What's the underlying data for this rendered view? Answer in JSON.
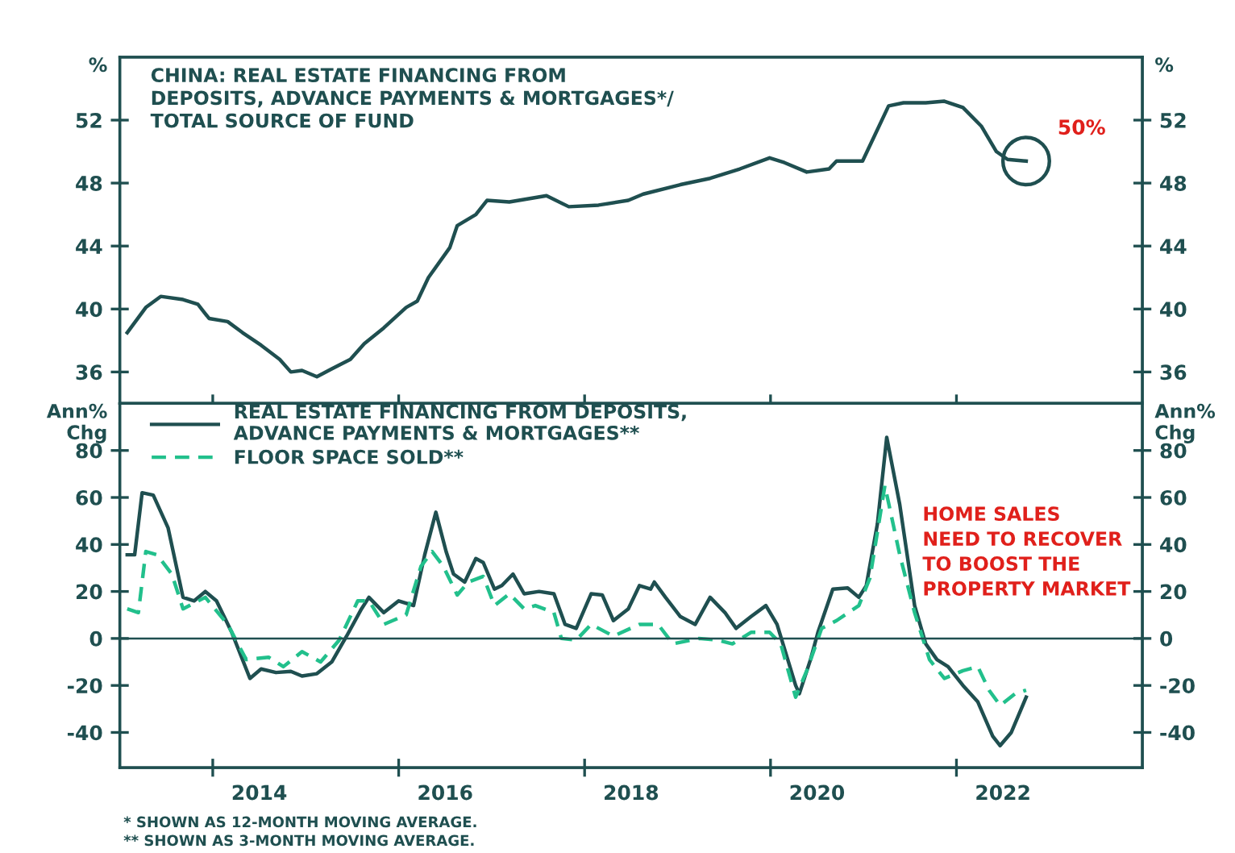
{
  "chart_data": [
    {
      "type": "line",
      "title": "CHINA: REAL ESTATE FINANCING FROM\nDEPOSITS, ADVANCE PAYMENTS & MORTGAGES*/\nTOTAL SOURCE OF FUND",
      "ylabel": "%",
      "y2label": "%",
      "xlim": [
        2013,
        2024
      ],
      "ylim": [
        34,
        56
      ],
      "yticks": [
        36,
        40,
        44,
        48,
        52
      ],
      "y2lim": [
        34,
        56
      ],
      "y2ticks": [
        36,
        40,
        44,
        48,
        52
      ],
      "xticks": [
        {
          "value": 2014,
          "label": null
        },
        {
          "value": 2016,
          "label": null
        },
        {
          "value": 2018,
          "label": null
        },
        {
          "value": 2020,
          "label": null
        },
        {
          "value": 2022,
          "label": null
        }
      ],
      "tick_labels": "y",
      "grid": false,
      "legend": false,
      "line_style": "solid",
      "marker": "none",
      "annotations": [
        {
          "text": "50%",
          "x": 2022.75,
          "y": 49.4
        }
      ],
      "series": [
        {
          "color": "#1f4f50",
          "x": [
            2013.08,
            2013.28,
            2013.44,
            2013.68,
            2013.84,
            2013.96,
            2014.16,
            2014.32,
            2014.52,
            2014.72,
            2014.84,
            2014.96,
            2015.12,
            2015.28,
            2015.48,
            2015.63,
            2015.84,
            2016.08,
            2016.2,
            2016.32,
            2016.55,
            2016.63,
            2016.83,
            2016.95,
            2017.19,
            2017.59,
            2017.83,
            2018.15,
            2018.47,
            2018.63,
            2019.03,
            2019.35,
            2019.67,
            2019.99,
            2020.15,
            2020.39,
            2020.63,
            2020.71,
            2020.99,
            2021.11,
            2021.27,
            2021.43,
            2021.67,
            2021.87,
            2022.07,
            2022.27,
            2022.43,
            2022.55,
            2022.75
          ],
          "values": [
            38.5,
            40.1,
            40.8,
            40.6,
            40.3,
            39.4,
            39.2,
            38.5,
            37.7,
            36.8,
            36.0,
            36.1,
            35.7,
            36.2,
            36.8,
            37.8,
            38.8,
            40.1,
            40.5,
            42.0,
            43.9,
            45.3,
            46.0,
            46.9,
            46.8,
            47.2,
            46.5,
            46.6,
            46.9,
            47.3,
            47.9,
            48.3,
            48.9,
            49.6,
            49.3,
            48.7,
            48.9,
            49.4,
            49.4,
            50.9,
            52.9,
            53.1,
            53.1,
            53.2,
            52.8,
            51.6,
            50.0,
            49.5,
            49.4
          ]
        }
      ]
    },
    {
      "type": "line",
      "ylabel": "Ann%\nChg",
      "y2label": "Ann%\nChg",
      "xlim": [
        2013,
        2024
      ],
      "ylim": [
        -55,
        100
      ],
      "yticks": [
        -40,
        -20,
        0,
        20,
        40,
        60,
        80
      ],
      "y2lim": [
        -55,
        100
      ],
      "y2ticks": [
        -40,
        -20,
        0,
        20,
        40,
        60,
        80
      ],
      "xticks": [
        {
          "value": 2014,
          "label": null
        },
        {
          "value": 2014.5,
          "label": "2014"
        },
        {
          "value": 2016,
          "label": null
        },
        {
          "value": 2016.5,
          "label": "2016"
        },
        {
          "value": 2018,
          "label": null
        },
        {
          "value": 2018.5,
          "label": "2018"
        },
        {
          "value": 2020,
          "label": null
        },
        {
          "value": 2020.5,
          "label": "2020"
        },
        {
          "value": 2022,
          "label": null
        },
        {
          "value": 2022.5,
          "label": "2022"
        }
      ],
      "grid": false,
      "legend": "top left",
      "marker": "none",
      "ref_lines": [
        {
          "axis": "y",
          "value": 0,
          "color": "#1f4f50"
        }
      ],
      "annotations": [
        "HOME SALES\nNEED TO RECOVER\nTO BOOST THE\nPROPERTY MARKET",
        "* SHOWN AS 12-MONTH MOVING AVERAGE.\n** SHOWN AS 3-MONTH MOVING AVERAGE."
      ],
      "series": [
        {
          "name": "REAL ESTATE FINANCING FROM DEPOSITS,\nADVANCE PAYMENTS & MORTGAGES**",
          "color": "#1f4f50",
          "line_style": "solid",
          "x": [
            2013.08,
            2013.16,
            2013.24,
            2013.36,
            2013.52,
            2013.68,
            2013.8,
            2013.92,
            2014.04,
            2014.2,
            2014.4,
            2014.52,
            2014.68,
            2014.84,
            2014.96,
            2015.12,
            2015.28,
            2015.44,
            2015.6,
            2015.68,
            2015.84,
            2016.0,
            2016.16,
            2016.28,
            2016.4,
            2016.51,
            2016.59,
            2016.71,
            2016.83,
            2016.91,
            2017.03,
            2017.11,
            2017.23,
            2017.35,
            2017.51,
            2017.67,
            2017.79,
            2017.91,
            2018.07,
            2018.19,
            2018.31,
            2018.47,
            2018.59,
            2018.71,
            2018.75,
            2018.87,
            2019.03,
            2019.19,
            2019.35,
            2019.51,
            2019.63,
            2019.79,
            2019.95,
            2020.07,
            2020.27,
            2020.31,
            2020.43,
            2020.51,
            2020.67,
            2020.83,
            2020.95,
            2021.03,
            2021.15,
            2021.25,
            2021.39,
            2021.55,
            2021.67,
            2021.79,
            2021.91,
            2022.07,
            2022.23,
            2022.39,
            2022.47,
            2022.59,
            2022.75
          ],
          "values": [
            35.6,
            35.6,
            62,
            61,
            47,
            17.5,
            16,
            20,
            16,
            3,
            -17,
            -13,
            -14.5,
            -14,
            -16,
            -15,
            -10,
            1,
            12.6,
            17.5,
            11,
            16,
            14,
            35.6,
            53.7,
            37,
            27.4,
            24,
            34,
            32.3,
            21,
            22.5,
            27.4,
            19,
            20,
            19,
            6,
            4.3,
            19,
            18.5,
            7.6,
            12.6,
            22.5,
            21,
            24,
            17.5,
            9.3,
            6,
            17.5,
            11,
            4.3,
            9.3,
            14,
            6,
            -20,
            -23.5,
            -9,
            2.6,
            21,
            21.5,
            17.5,
            22.5,
            48.8,
            85.6,
            57,
            14,
            -2.3,
            -9,
            -12,
            -20,
            -27,
            -41.6,
            -45.6,
            -40,
            -25
          ]
        },
        {
          "name": "FLOOR SPACE SOLD**",
          "color": "#22c08c",
          "line_style": "dashed",
          "x": [
            2013.08,
            2013.2,
            2013.28,
            2013.4,
            2013.56,
            2013.68,
            2013.92,
            2014.16,
            2014.36,
            2014.6,
            2014.76,
            2014.96,
            2015.16,
            2015.36,
            2015.56,
            2015.68,
            2015.84,
            2016.08,
            2016.24,
            2016.36,
            2016.48,
            2016.63,
            2016.75,
            2016.91,
            2017.03,
            2017.19,
            2017.35,
            2017.47,
            2017.67,
            2017.75,
            2017.91,
            2018.07,
            2018.31,
            2018.59,
            2018.79,
            2018.95,
            2019.23,
            2019.43,
            2019.59,
            2019.79,
            2019.99,
            2020.11,
            2020.27,
            2020.39,
            2020.55,
            2020.71,
            2020.95,
            2021.07,
            2021.23,
            2021.39,
            2021.55,
            2021.71,
            2021.87,
            2022.07,
            2022.23,
            2022.35,
            2022.47,
            2022.63,
            2022.75
          ],
          "values": [
            12.6,
            11,
            37,
            35.6,
            27.4,
            12.6,
            17.5,
            6,
            -9,
            -8,
            -12,
            -5.6,
            -10,
            -0.7,
            16,
            16,
            6,
            10,
            30.7,
            37,
            30.7,
            18.5,
            24,
            26.4,
            14,
            19,
            12.6,
            14,
            11,
            0,
            -0.7,
            6,
            1,
            6,
            6,
            -2.3,
            0,
            -0.7,
            -2.3,
            2.6,
            2.6,
            -2.3,
            -25,
            -13.7,
            4.3,
            7.6,
            14,
            25.8,
            65,
            35.6,
            11,
            -9,
            -17,
            -13.7,
            -12,
            -22,
            -28.5,
            -23.5,
            -22
          ]
        }
      ]
    }
  ]
}
